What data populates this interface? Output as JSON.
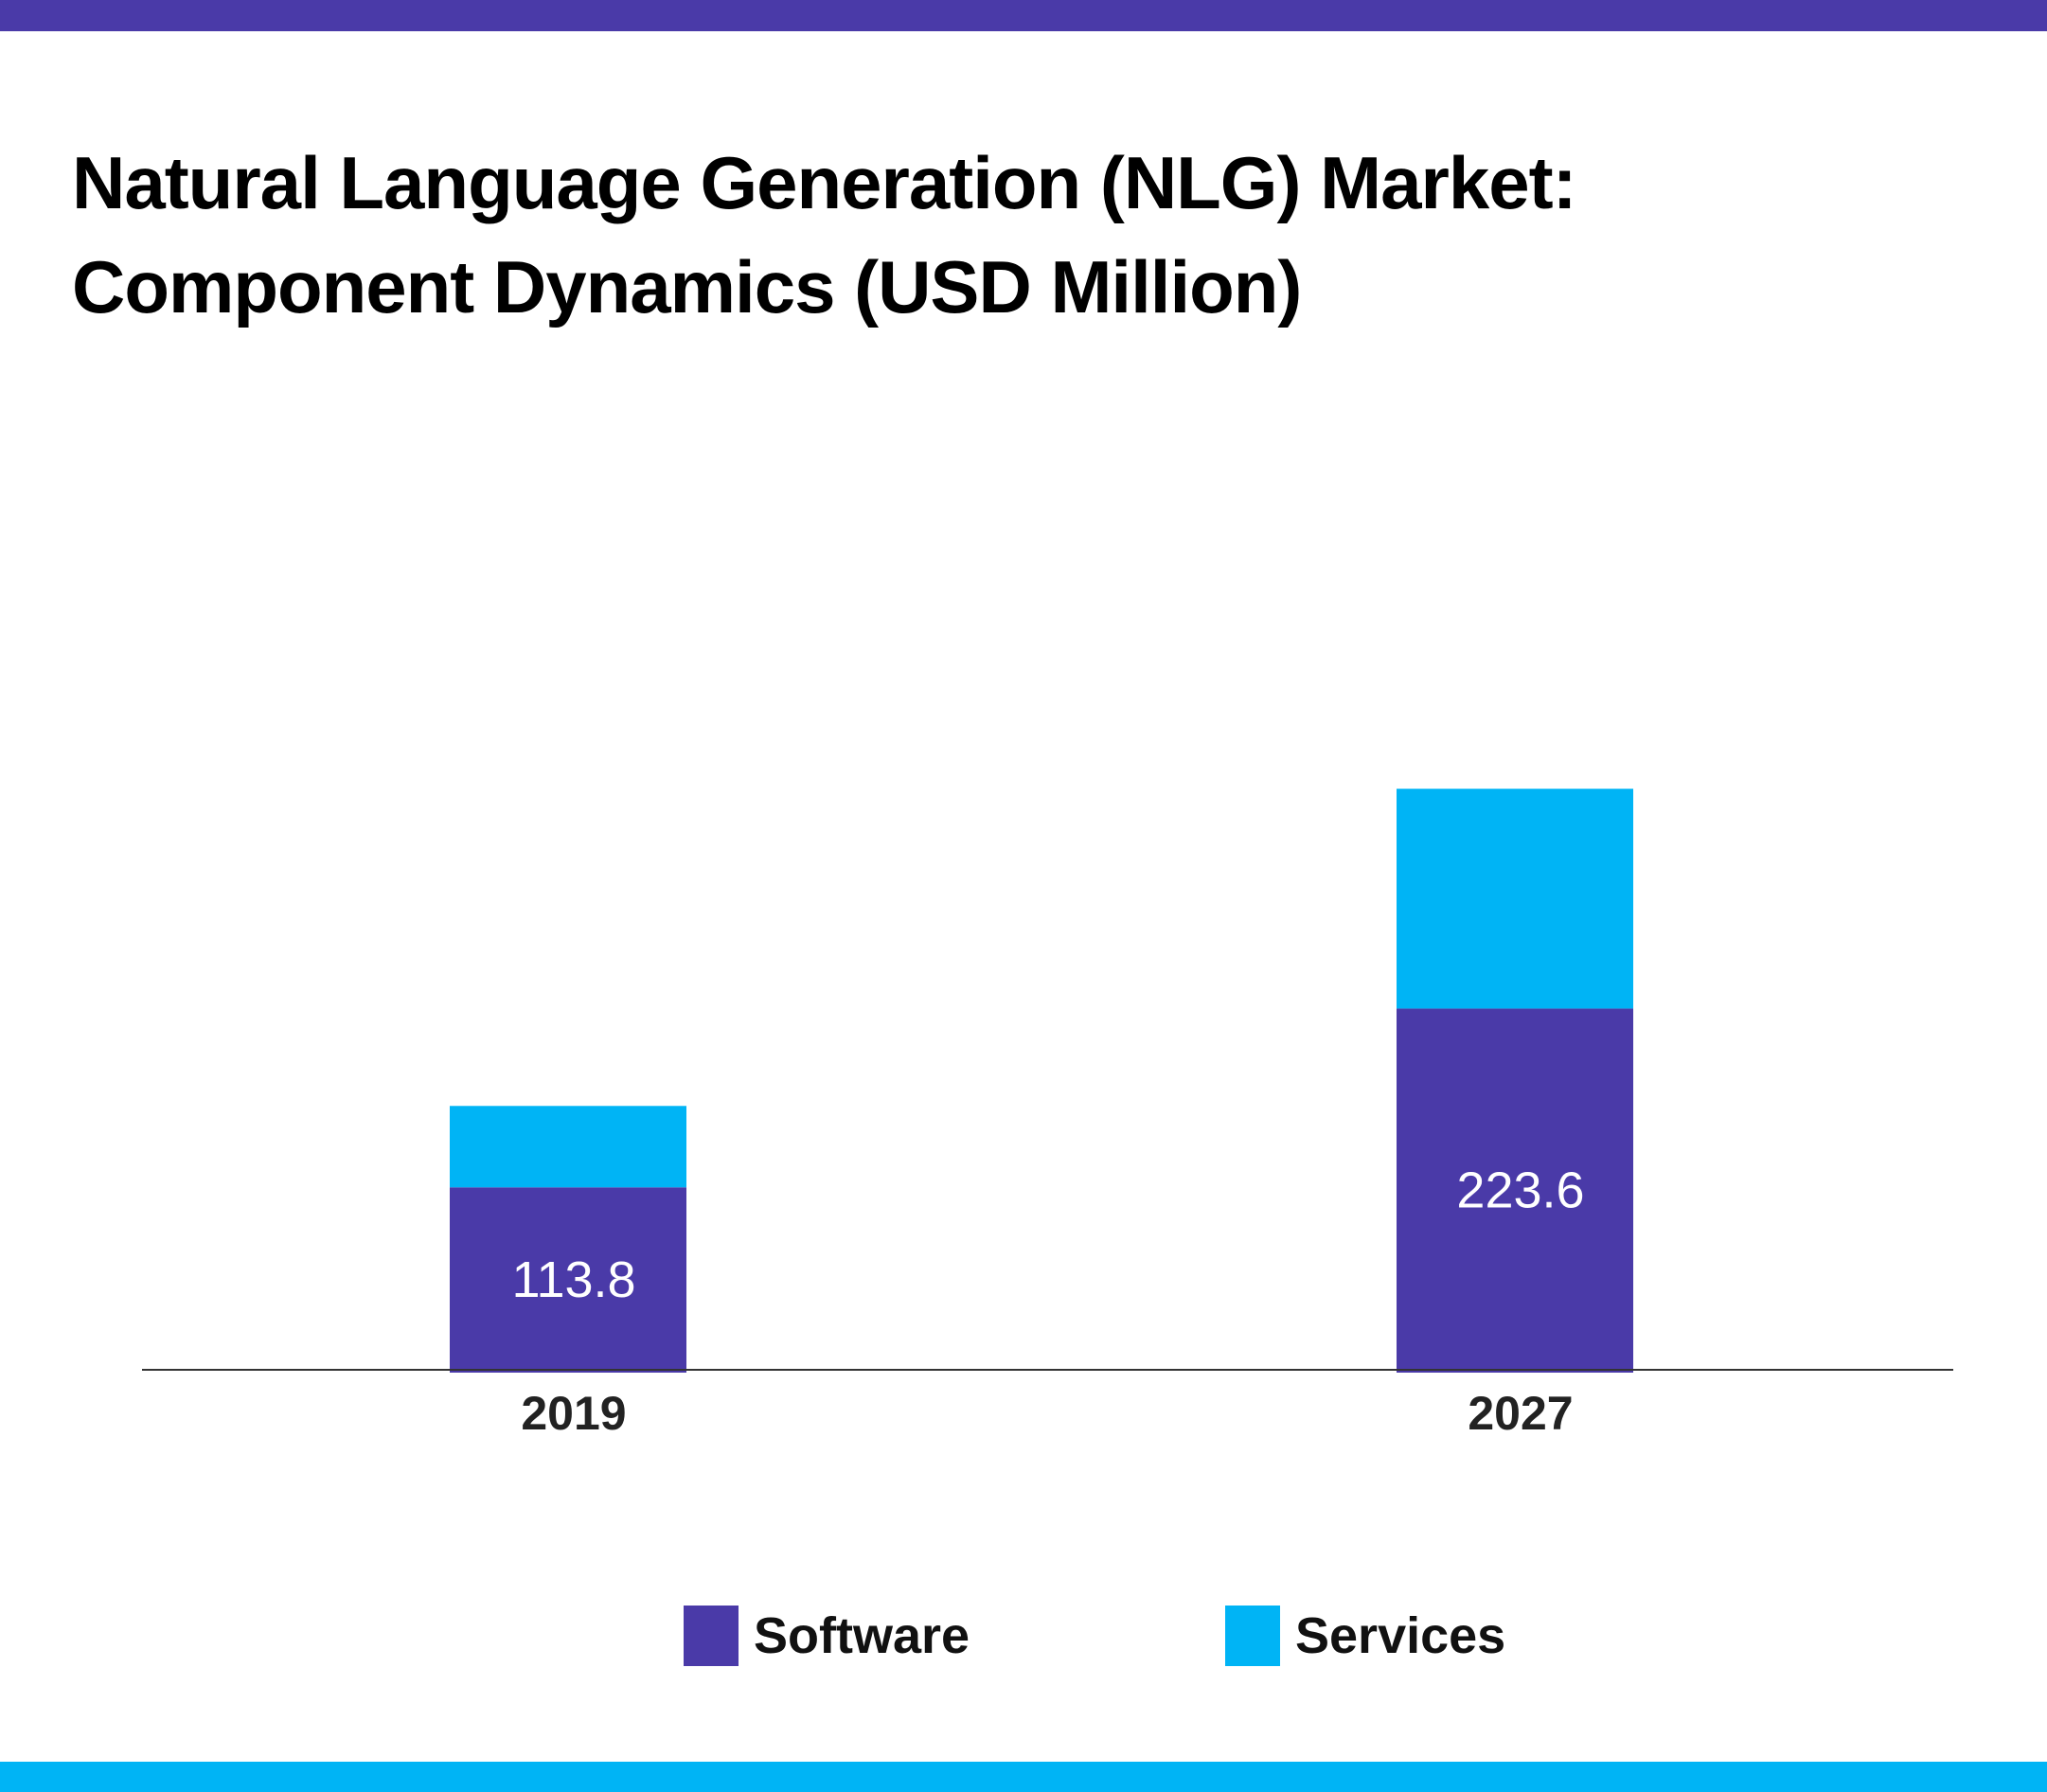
{
  "title": {
    "line1": "Natural Language Generation (NLG) Market:",
    "line2": "Component Dynamics (USD Million)"
  },
  "colors": {
    "top_band": "#4a3aa8",
    "bottom_band": "#00b4f5",
    "software": "#4a3aa8",
    "services": "#00b4f5",
    "axis": "#333333",
    "data_label": "#ffffff",
    "tick_label": "#222222"
  },
  "chart_data": {
    "type": "bar",
    "stacked": true,
    "title": "Natural Language Generation (NLG) Market: Component Dynamics (USD Million)",
    "categories": [
      "2019",
      "2027"
    ],
    "series": [
      {
        "name": "Software",
        "values": [
          113.8,
          223.6
        ],
        "color": "#4a3aa8",
        "data_labels": [
          "113.8",
          "223.6"
        ]
      },
      {
        "name": "Services",
        "values": [
          50,
          135
        ],
        "color": "#00b4f5",
        "data_labels": []
      }
    ],
    "xlabel": "",
    "ylabel": "",
    "ylim": [
      0,
      500
    ],
    "grid": false,
    "legend_position": "bottom"
  }
}
